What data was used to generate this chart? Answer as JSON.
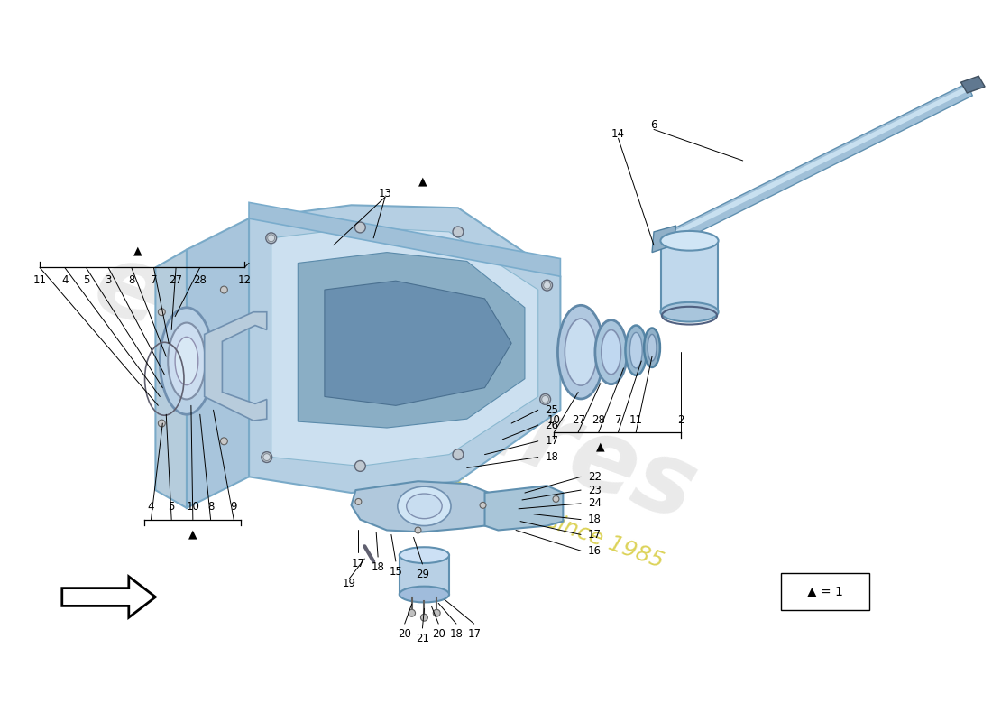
{
  "bg_color": "#ffffff",
  "legend_text": "▲ = 1",
  "arrow_symbol": "▲",
  "housing_color": "#b8d0e5",
  "housing_edge": "#7aaac8",
  "housing_inner_color": "#cce0f0",
  "housing_dark": "#8aaec8",
  "shaft_color": "#a8c8de",
  "shaft_edge": "#6090b0",
  "ring_color": "#b0cce0",
  "ring_edge": "#6090b0",
  "cap_color": "#c0d8ec",
  "bracket_color": "#b0cce0",
  "white": "#ffffff",
  "black": "#000000",
  "watermark_gray": "#cccccc",
  "watermark_yellow": "#d4c830"
}
